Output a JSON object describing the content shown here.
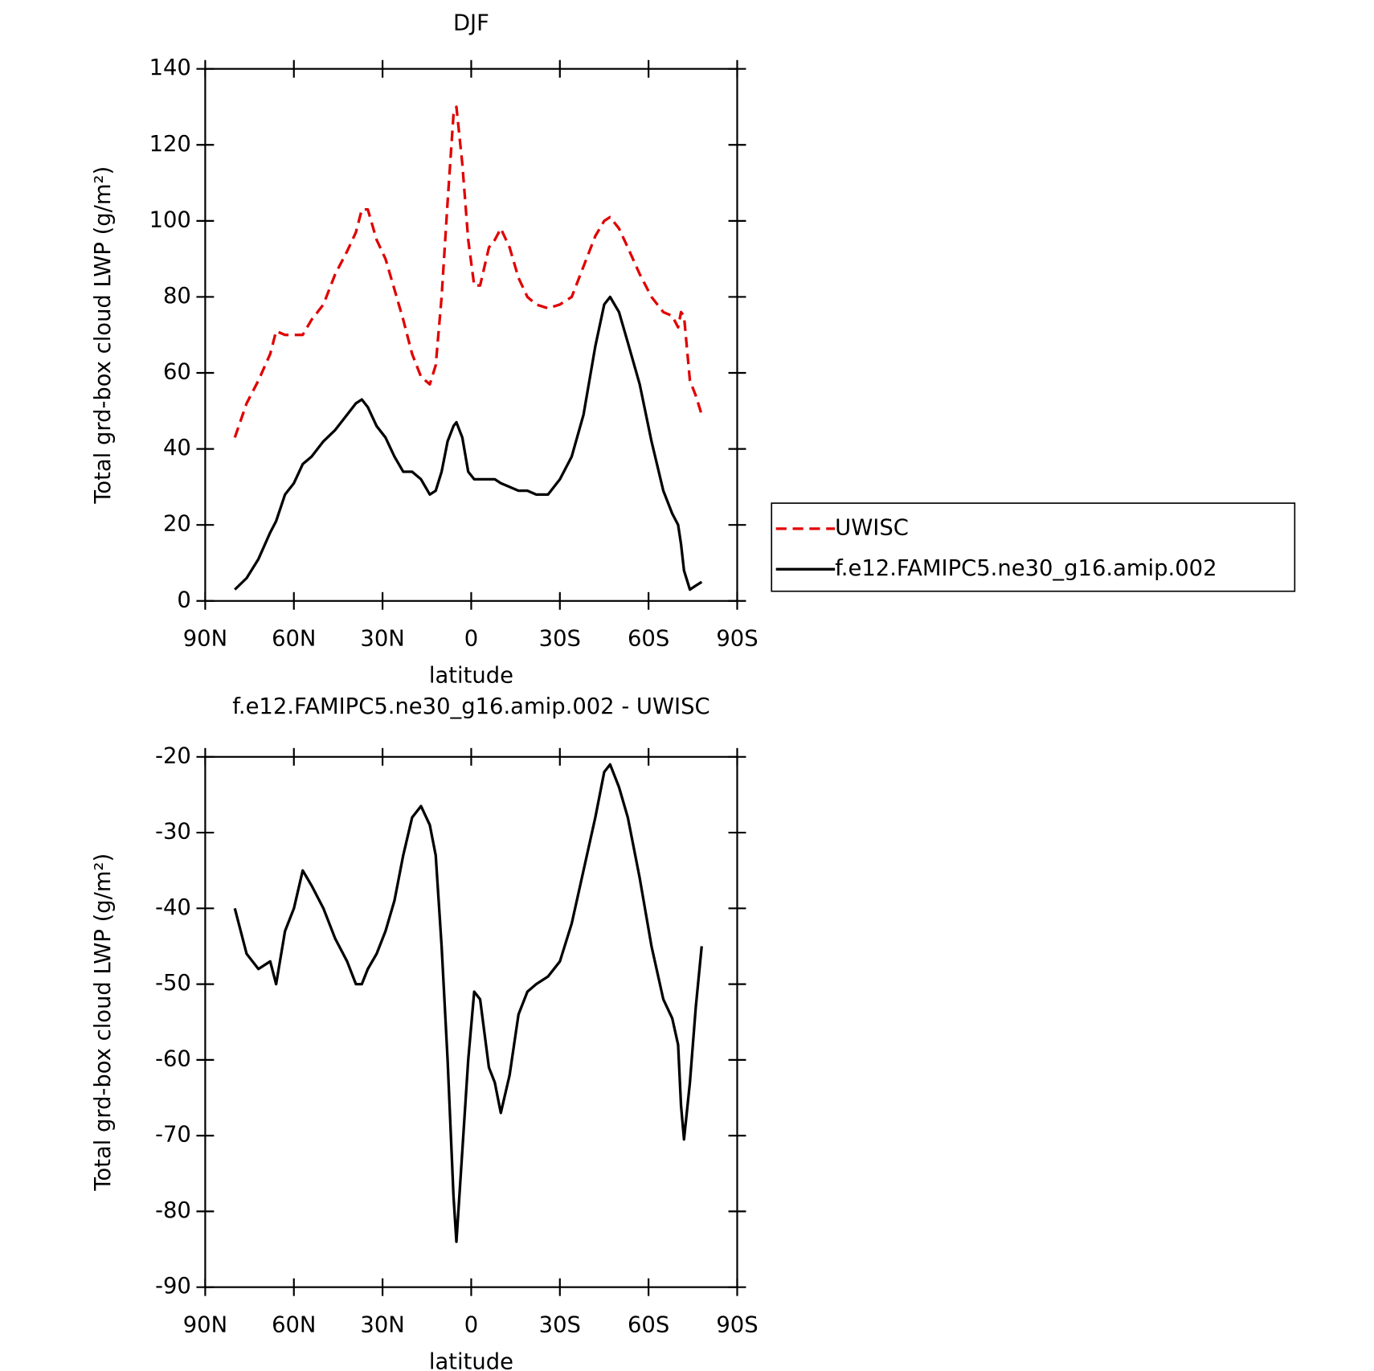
{
  "chart_data": [
    {
      "type": "line",
      "title": "DJF",
      "xlabel": "latitude",
      "ylabel": "Total grd-box cloud LWP (g/m²)",
      "x": [
        80,
        76,
        72,
        68,
        66,
        63,
        60,
        57,
        54,
        50,
        46,
        42,
        39,
        37,
        35,
        32,
        29,
        26,
        23,
        20,
        17,
        14,
        12,
        10,
        8,
        6,
        5,
        3,
        1,
        -1,
        -3,
        -6,
        -8,
        -10,
        -13,
        -16,
        -19,
        -22,
        -26,
        -30,
        -34,
        -38,
        -42,
        -45,
        -47,
        -50,
        -53,
        -57,
        -61,
        -65,
        -68,
        -70,
        -71,
        -72,
        -74,
        -76,
        -78
      ],
      "series": [
        {
          "name": "UWISC",
          "color": "#e00000",
          "style": "dashed",
          "values": [
            43,
            52,
            58,
            65,
            71,
            70,
            70,
            70,
            74,
            78,
            86,
            92,
            97,
            103,
            103,
            95,
            90,
            82,
            74,
            65,
            59,
            57,
            62,
            80,
            105,
            128,
            130,
            115,
            95,
            83,
            83,
            93,
            95,
            98,
            93,
            85,
            80,
            78,
            77,
            78,
            80,
            88,
            96,
            100,
            101,
            98,
            93,
            86,
            80,
            76,
            75,
            72,
            76,
            75,
            58,
            54,
            49
          ]
        },
        {
          "name": "f.e12.FAMIPC5.ne30_g16.amip.002",
          "color": "#000000",
          "style": "solid",
          "values": [
            3,
            6,
            11,
            18,
            21,
            28,
            31,
            36,
            38,
            42,
            45,
            49,
            52,
            53,
            51,
            46,
            43,
            38,
            34,
            34,
            32,
            28,
            29,
            34,
            42,
            46,
            47,
            43,
            34,
            32,
            32,
            32,
            32,
            31,
            30,
            29,
            29,
            28,
            28,
            32,
            38,
            49,
            67,
            78,
            80,
            76,
            68,
            57,
            42,
            29,
            23,
            20,
            15,
            8,
            3,
            4,
            5
          ]
        }
      ],
      "xlim": [
        90,
        -90
      ],
      "xticks": [
        {
          "value": 90,
          "label": "90N"
        },
        {
          "value": 60,
          "label": "60N"
        },
        {
          "value": 30,
          "label": "30N"
        },
        0,
        {
          "value": -30,
          "label": "30S"
        },
        {
          "value": -60,
          "label": "60S"
        },
        {
          "value": -90,
          "label": "90S"
        }
      ],
      "ylim": [
        0,
        140
      ],
      "yticks": [
        0,
        20,
        40,
        60,
        80,
        100,
        120,
        140
      ],
      "legend": "right"
    },
    {
      "type": "line",
      "title": "f.e12.FAMIPC5.ne30_g16.amip.002 - UWISC",
      "xlabel": "latitude",
      "ylabel": "Total grd-box cloud LWP (g/m²)",
      "x": [
        80,
        76,
        72,
        68,
        66,
        63,
        60,
        57,
        54,
        50,
        46,
        42,
        39,
        37,
        35,
        32,
        29,
        26,
        23,
        20,
        17,
        14,
        12,
        10,
        8,
        6,
        5,
        3,
        1,
        -1,
        -3,
        -6,
        -8,
        -10,
        -13,
        -16,
        -19,
        -22,
        -26,
        -30,
        -34,
        -38,
        -42,
        -45,
        -47,
        -50,
        -53,
        -57,
        -61,
        -65,
        -68,
        -70,
        -71,
        -72,
        -74,
        -76,
        -78
      ],
      "values": [
        -40,
        -46,
        -48,
        -47,
        -50,
        -43,
        -40,
        -35,
        -37,
        -40,
        -44,
        -47,
        -50,
        -50,
        -48,
        -46,
        -43,
        -39,
        -33,
        -28,
        -26.5,
        -29,
        -33,
        -45,
        -60,
        -78,
        -84,
        -72,
        -60,
        -51,
        -52,
        -61,
        -63,
        -67,
        -62,
        -54,
        -51,
        -50,
        -49,
        -47,
        -42,
        -35,
        -28,
        -22,
        -21,
        -24,
        -28,
        -36,
        -45,
        -52,
        -54.5,
        -58,
        -66,
        -70.5,
        -63,
        -53,
        -45
      ],
      "color": "#000000",
      "xlim": [
        90,
        -90
      ],
      "xticks": [
        {
          "value": 90,
          "label": "90N"
        },
        {
          "value": 60,
          "label": "60N"
        },
        {
          "value": 30,
          "label": "30N"
        },
        0,
        {
          "value": -30,
          "label": "30S"
        },
        {
          "value": -60,
          "label": "60S"
        },
        {
          "value": -90,
          "label": "90S"
        }
      ],
      "ylim": [
        -90,
        -20
      ],
      "yticks": [
        -90,
        -80,
        -70,
        -60,
        -50,
        -40,
        -30,
        -20
      ]
    }
  ]
}
